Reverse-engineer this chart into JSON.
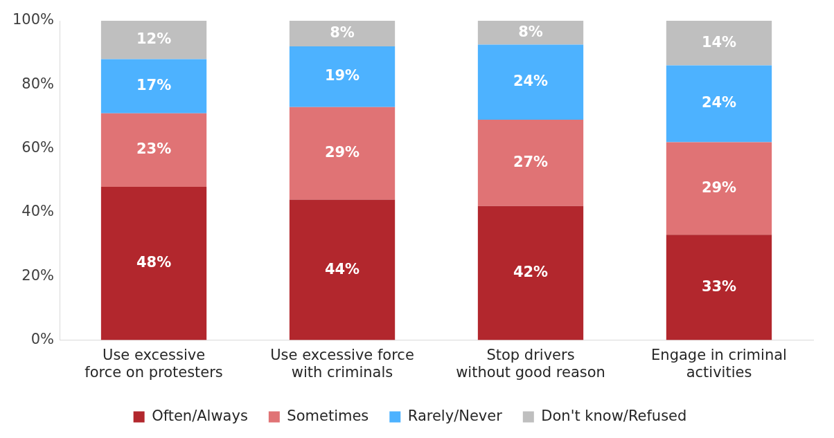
{
  "chart_data": {
    "type": "bar",
    "stacked": true,
    "legend": "bottom",
    "grid": false,
    "categories": [
      "Use excessive force on protesters",
      "Use excessive force with criminals",
      "Stop drivers without good reason",
      "Engage in criminal activities"
    ],
    "ylim": [
      0,
      100
    ],
    "yticks": [
      {
        "value": 0,
        "label": "0%"
      },
      {
        "value": 20,
        "label": "20%"
      },
      {
        "value": 40,
        "label": "40%"
      },
      {
        "value": 60,
        "label": "60%"
      },
      {
        "value": 80,
        "label": "80%"
      },
      {
        "value": 100,
        "label": "100%"
      }
    ],
    "series": [
      {
        "name": "Often/Always",
        "color": "#b2272d",
        "values": [
          48,
          44,
          42,
          33
        ],
        "value_labels": [
          "48%",
          "44%",
          "42%",
          "33%"
        ]
      },
      {
        "name": "Sometimes",
        "color": "#e07375",
        "values": [
          23,
          29,
          27,
          29
        ],
        "value_labels": [
          "23%",
          "29%",
          "27%",
          "29%"
        ]
      },
      {
        "name": "Rarely/Never",
        "color": "#4db2ff",
        "values": [
          17,
          19,
          23.5,
          24
        ],
        "value_labels": [
          "17%",
          "19%",
          "24%",
          "24%"
        ]
      },
      {
        "name": "Don't know/Refused",
        "color": "#bfbfbf",
        "values": [
          12,
          8,
          7.5,
          14
        ],
        "value_labels": [
          "12%",
          "8%",
          "8%",
          "14%"
        ]
      }
    ]
  }
}
